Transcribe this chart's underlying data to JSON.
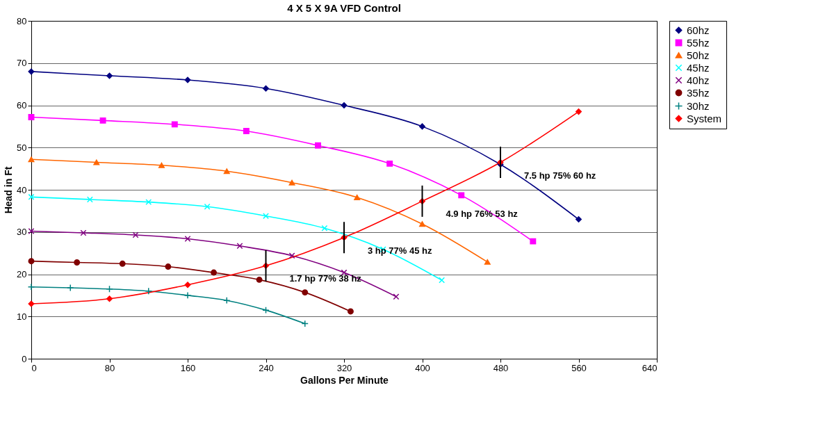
{
  "chart_data": {
    "type": "line",
    "title": "4 X 5 X 9A  VFD Control",
    "xlabel": "Gallons Per Minute",
    "ylabel": "Head in Ft",
    "xlim": [
      0,
      640
    ],
    "xticks": [
      0,
      80,
      160,
      240,
      320,
      400,
      480,
      560,
      640
    ],
    "ylim": [
      0,
      80
    ],
    "yticks": [
      0,
      10,
      20,
      30,
      40,
      50,
      60,
      70,
      80
    ],
    "grid": "y",
    "legend": "right",
    "series": [
      {
        "name": "60hz",
        "color": "#000080",
        "marker": "diamond",
        "x": [
          0,
          80,
          160,
          240,
          320,
          400,
          480,
          560
        ],
        "values": [
          68,
          67,
          66,
          64,
          60,
          55,
          46,
          33
        ]
      },
      {
        "name": "55hz",
        "color": "#ff00ff",
        "marker": "square",
        "x": [
          0,
          73.3,
          146.7,
          220,
          293.3,
          366.7,
          440,
          513.3
        ],
        "values": [
          57.2,
          56.4,
          55.5,
          53.9,
          50.5,
          46.2,
          38.7,
          27.8
        ]
      },
      {
        "name": "50hz",
        "color": "#ff6600",
        "marker": "triangle",
        "x": [
          0,
          66.7,
          133.3,
          200,
          266.7,
          333.3,
          400,
          466.7
        ],
        "values": [
          47.2,
          46.5,
          45.8,
          44.4,
          41.7,
          38.2,
          31.9,
          22.9
        ]
      },
      {
        "name": "45hz",
        "color": "#00ffff",
        "marker": "cross",
        "x": [
          0,
          60,
          120,
          180,
          240,
          300,
          360,
          420
        ],
        "values": [
          38.3,
          37.7,
          37.1,
          36.0,
          33.8,
          30.9,
          25.9,
          18.6
        ]
      },
      {
        "name": "40hz",
        "color": "#800080",
        "marker": "cross",
        "x": [
          0,
          53.3,
          106.7,
          160,
          213.3,
          266.7,
          320,
          373.3
        ],
        "values": [
          30.2,
          29.8,
          29.3,
          28.4,
          26.7,
          24.4,
          20.4,
          14.7
        ]
      },
      {
        "name": "35hz",
        "color": "#800000",
        "marker": "circle",
        "x": [
          0,
          46.7,
          93.3,
          140,
          186.7,
          233.3,
          280,
          326.7
        ],
        "values": [
          23.1,
          22.8,
          22.5,
          21.8,
          20.4,
          18.7,
          15.7,
          11.2
        ]
      },
      {
        "name": "30hz",
        "color": "#008080",
        "marker": "plus",
        "x": [
          0,
          40,
          80,
          120,
          160,
          200,
          240,
          280
        ],
        "values": [
          17.0,
          16.8,
          16.5,
          16.0,
          15.0,
          13.8,
          11.5,
          8.3
        ]
      },
      {
        "name": "System",
        "color": "#ff0000",
        "marker": "diamond",
        "x": [
          0,
          80,
          160,
          240,
          320,
          400,
          480,
          560
        ],
        "values": [
          13.0,
          14.2,
          17.5,
          22.0,
          28.7,
          37.3,
          46.5,
          58.5
        ],
        "errors": [
          null,
          null,
          null,
          3.7,
          3.7,
          3.7,
          3.7,
          null
        ]
      }
    ],
    "annotations": [
      {
        "text": "1.7 hp  77%  38 hz",
        "x": 240,
        "y": 22.0
      },
      {
        "text": "3 hp  77%  45 hz",
        "x": 320,
        "y": 28.7
      },
      {
        "text": "4.9 hp  76%  53 hz",
        "x": 400,
        "y": 37.3
      },
      {
        "text": "7.5 hp  75%  60 hz",
        "x": 480,
        "y": 46.5
      }
    ]
  }
}
